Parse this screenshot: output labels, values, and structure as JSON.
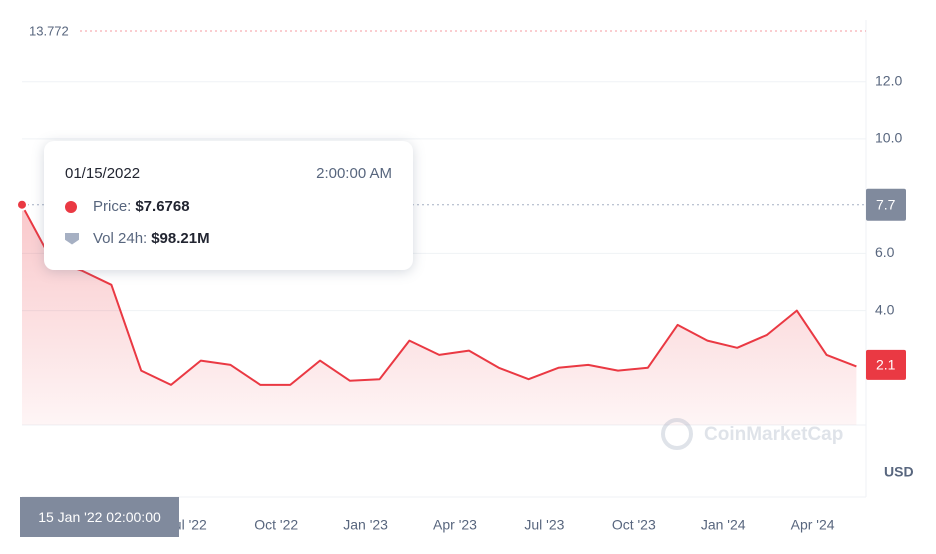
{
  "chart_data": {
    "type": "line",
    "x": [
      "2022-01",
      "2022-02",
      "2022-03",
      "2022-04",
      "2022-05",
      "2022-06",
      "2022-07",
      "2022-08",
      "2022-09",
      "2022-10",
      "2022-11",
      "2022-12",
      "2023-01",
      "2023-02",
      "2023-03",
      "2023-04",
      "2023-05",
      "2023-06",
      "2023-07",
      "2023-08",
      "2023-09",
      "2023-10",
      "2023-11",
      "2023-12",
      "2024-01",
      "2024-02",
      "2024-03",
      "2024-04",
      "2024-05"
    ],
    "series": [
      {
        "name": "Price",
        "color": "#ea3943",
        "values": [
          7.68,
          5.75,
          5.4,
          4.9,
          1.9,
          1.4,
          2.25,
          2.1,
          1.4,
          1.4,
          2.25,
          1.55,
          1.6,
          2.95,
          2.45,
          2.6,
          2.0,
          1.6,
          2.0,
          2.1,
          1.9,
          2.0,
          3.5,
          2.95,
          2.7,
          3.15,
          4.0,
          2.45,
          2.05
        ]
      }
    ],
    "ylim": [
      0,
      13.772
    ],
    "yticks": [
      {
        "value": 4,
        "label": "4.0"
      },
      {
        "value": 6,
        "label": "6.0"
      },
      {
        "value": 10,
        "label": "10.0"
      },
      {
        "value": 12,
        "label": "12.0"
      }
    ],
    "xticks": [
      {
        "value": "2022-07",
        "label": "Jul '22"
      },
      {
        "value": "2022-10",
        "label": "Oct '22"
      },
      {
        "value": "2023-01",
        "label": "Jan '23"
      },
      {
        "value": "2023-04",
        "label": "Apr '23"
      },
      {
        "value": "2023-07",
        "label": "Jul '23"
      },
      {
        "value": "2023-10",
        "label": "Oct '23"
      },
      {
        "value": "2024-01",
        "label": "Jan '24"
      },
      {
        "value": "2024-04",
        "label": "Apr '24"
      }
    ],
    "grid": true,
    "max_value": 13.772,
    "hover_price": 7.7,
    "last_price": 2.1,
    "unit": "USD",
    "watermark": "CoinMarketCap",
    "tooltip": {
      "date": "01/15/2022",
      "time": "2:00:00 AM",
      "price_label": "Price:",
      "price": "$7.6768",
      "volume_label": "Vol 24h:",
      "volume": "$98.21M"
    },
    "hover_timestamp": "15 Jan '22 02:00:00"
  }
}
